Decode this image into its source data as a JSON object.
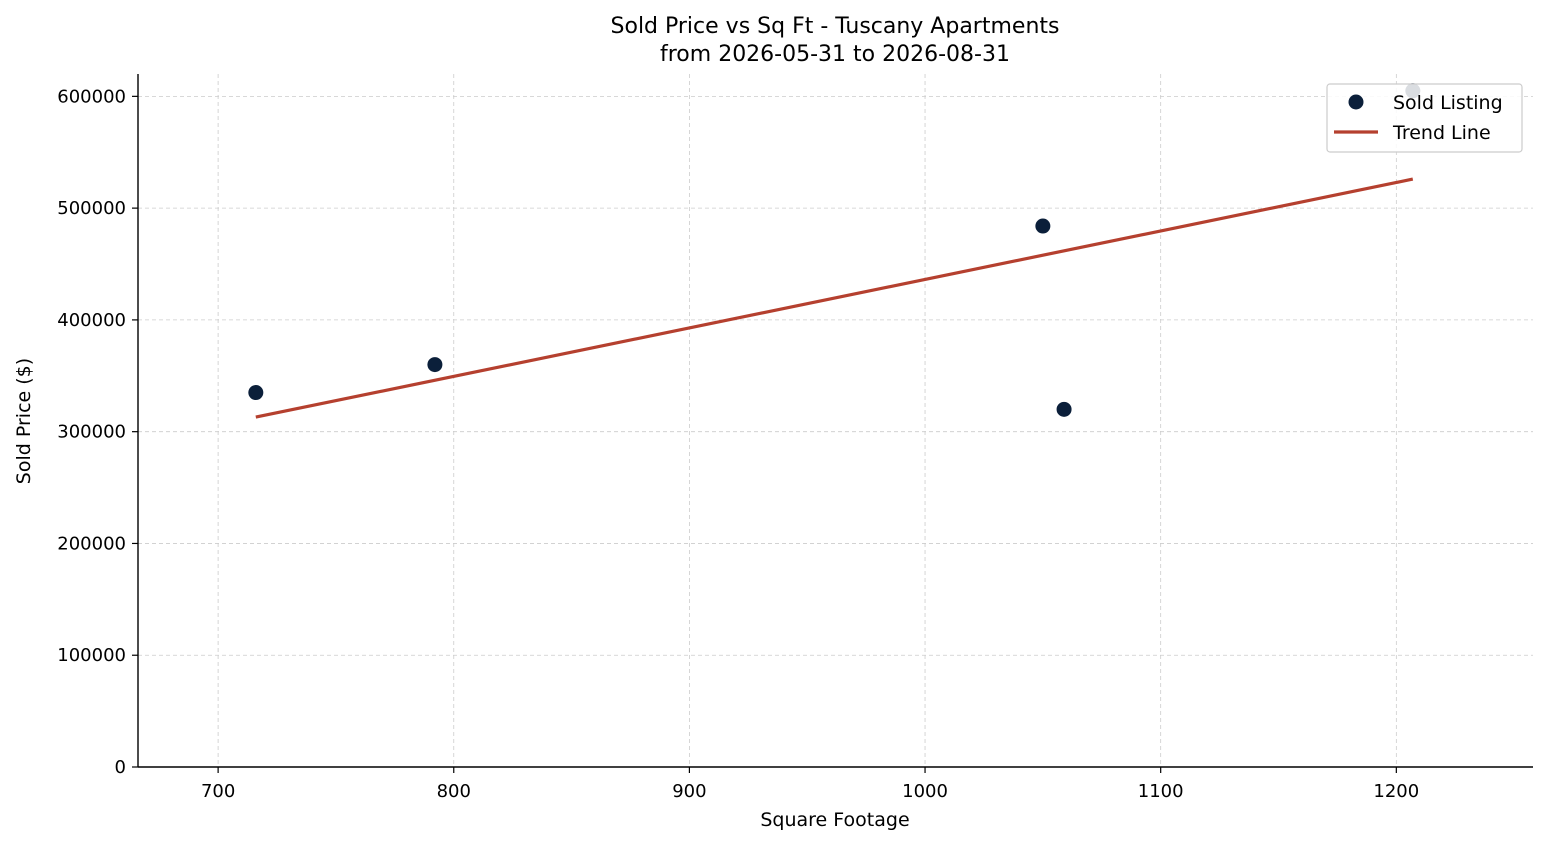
{
  "chart_data": {
    "type": "scatter",
    "title": "Sold Price vs Sq Ft - Tuscany Apartments",
    "subtitle": "from 2026-05-31 to 2026-08-31",
    "xlabel": "Square Footage",
    "ylabel": "Sold Price ($)",
    "xlim": [
      666,
      1258
    ],
    "ylim": [
      0,
      620000
    ],
    "x_ticks": [
      700,
      800,
      900,
      1000,
      1100,
      1200
    ],
    "y_ticks": [
      0,
      100000,
      200000,
      300000,
      400000,
      500000,
      600000
    ],
    "grid": true,
    "legend_position": "top-right",
    "series": [
      {
        "name": "Sold Listing",
        "kind": "scatter",
        "color": "#0b1f3a",
        "points": [
          {
            "x": 716,
            "y": 335000
          },
          {
            "x": 792,
            "y": 360000
          },
          {
            "x": 1050,
            "y": 484000
          },
          {
            "x": 1059,
            "y": 320000
          },
          {
            "x": 1207,
            "y": 605000
          }
        ]
      },
      {
        "name": "Trend Line",
        "kind": "line",
        "color": "#b5402f",
        "points": [
          {
            "x": 716,
            "y": 313000
          },
          {
            "x": 1207,
            "y": 526000
          }
        ]
      }
    ]
  }
}
